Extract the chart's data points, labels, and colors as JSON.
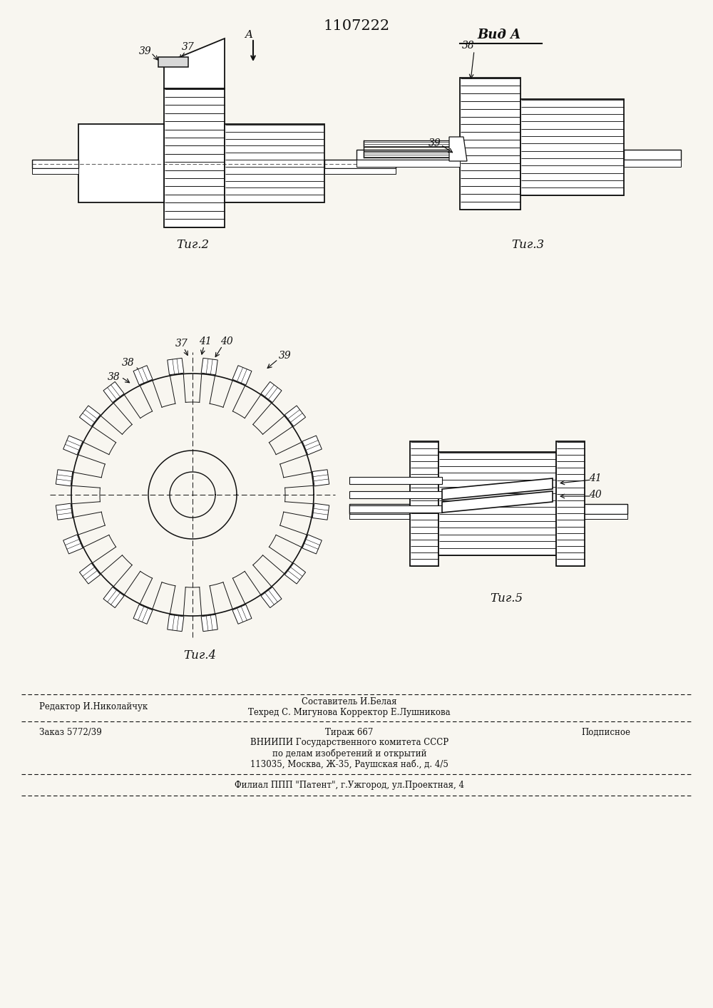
{
  "patent_number": "1107222",
  "background_color": "#f8f6f0",
  "line_color": "#111111",
  "fig2_caption": "Τиг.2",
  "fig3_caption": "Τиг.3",
  "fig4_caption": "Τиг.4",
  "fig5_caption": "Τиг.5",
  "vid_a": "Вид A",
  "lbl_37": "37",
  "lbl_38": "38",
  "lbl_39": "39",
  "lbl_40": "40",
  "lbl_41": "41",
  "footer_editor": "Редактор И.Николайчук",
  "footer_comp": "Составитель И.Белая",
  "footer_tech": "Техред С. Мигунова Корректор Е.Лушникова",
  "footer_order": "Заказ 5772/39",
  "footer_circ": "Тираж 667",
  "footer_sign": "Подписное",
  "footer_org1": "ВНИИПИ Государственного комитета СССР",
  "footer_org2": "по делам изобретений и открытий",
  "footer_addr": "113035, Москва, Ж-35, Раушская наб., д. 4/5",
  "footer_branch": "Филиал ППП \"Патент\", г.Ужгород, ул.Проектная, 4"
}
